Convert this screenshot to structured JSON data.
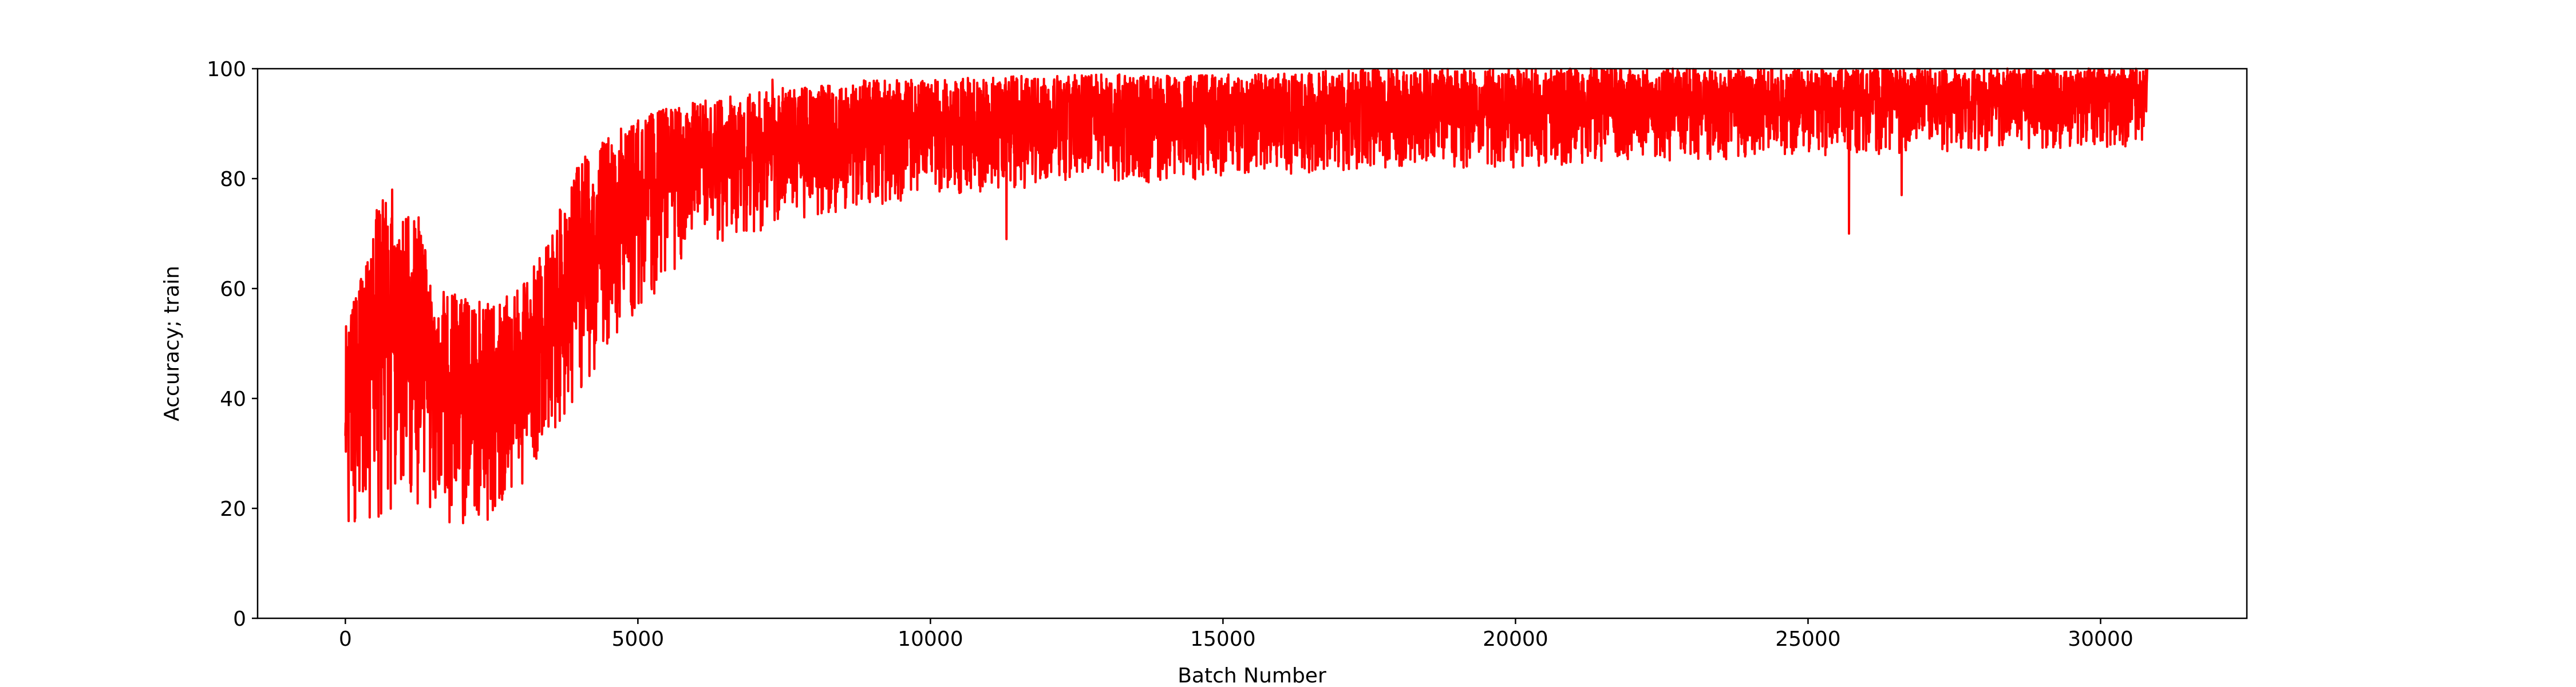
{
  "chart_data": {
    "type": "line",
    "title": "",
    "xlabel": "Batch Number",
    "ylabel": "Accuracy; train",
    "xlim": [
      -1500,
      32500
    ],
    "ylim": [
      0,
      100
    ],
    "xticks": [
      0,
      5000,
      10000,
      15000,
      20000,
      25000,
      30000
    ],
    "yticks": [
      0,
      20,
      40,
      60,
      80,
      100
    ],
    "xtick_labels": [
      "0",
      "5000",
      "10000",
      "15000",
      "20000",
      "25000",
      "30000"
    ],
    "ytick_labels": [
      "0",
      "20",
      "40",
      "60",
      "80",
      "100"
    ],
    "grid": false,
    "legend": "none",
    "colors": {
      "line": "#ff0000",
      "axes": "#000000",
      "background": "#ffffff"
    },
    "series": [
      {
        "x_range": [
          0,
          30800
        ],
        "envelope_x": [
          0,
          300,
          600,
          900,
          1200,
          1500,
          2000,
          2500,
          3000,
          3500,
          4000,
          4500,
          5000,
          5500,
          6000,
          7000,
          8000,
          9000,
          10000,
          12000,
          15000,
          18000,
          20000,
          22000,
          25000,
          28000,
          30800
        ],
        "envelope_mid": [
          38,
          46,
          50,
          48,
          47,
          45,
          38,
          36,
          42,
          52,
          60,
          67,
          74,
          79,
          82,
          84,
          86,
          87,
          88,
          89,
          90,
          91,
          92,
          92,
          93,
          94,
          95
        ],
        "envelope_low": [
          16,
          15,
          18,
          20,
          21,
          18,
          17,
          18,
          24,
          33,
          40,
          50,
          55,
          62,
          67,
          70,
          73,
          75,
          77,
          78,
          80,
          82,
          82,
          83,
          84,
          85,
          86
        ],
        "envelope_high": [
          53,
          63,
          78,
          72,
          76,
          60,
          59,
          57,
          60,
          70,
          83,
          88,
          91,
          93,
          94,
          96,
          97,
          98,
          98,
          99,
          99,
          100,
          100,
          100,
          100,
          100,
          100
        ],
        "notable_points": [
          {
            "x": 800,
            "y": 78
          },
          {
            "x": 4100,
            "y": 84
          },
          {
            "x": 7300,
            "y": 98
          },
          {
            "x": 11300,
            "y": 69
          },
          {
            "x": 25700,
            "y": 70
          },
          {
            "x": 26600,
            "y": 77
          },
          {
            "x": 30800,
            "y": 100
          }
        ]
      }
    ]
  }
}
